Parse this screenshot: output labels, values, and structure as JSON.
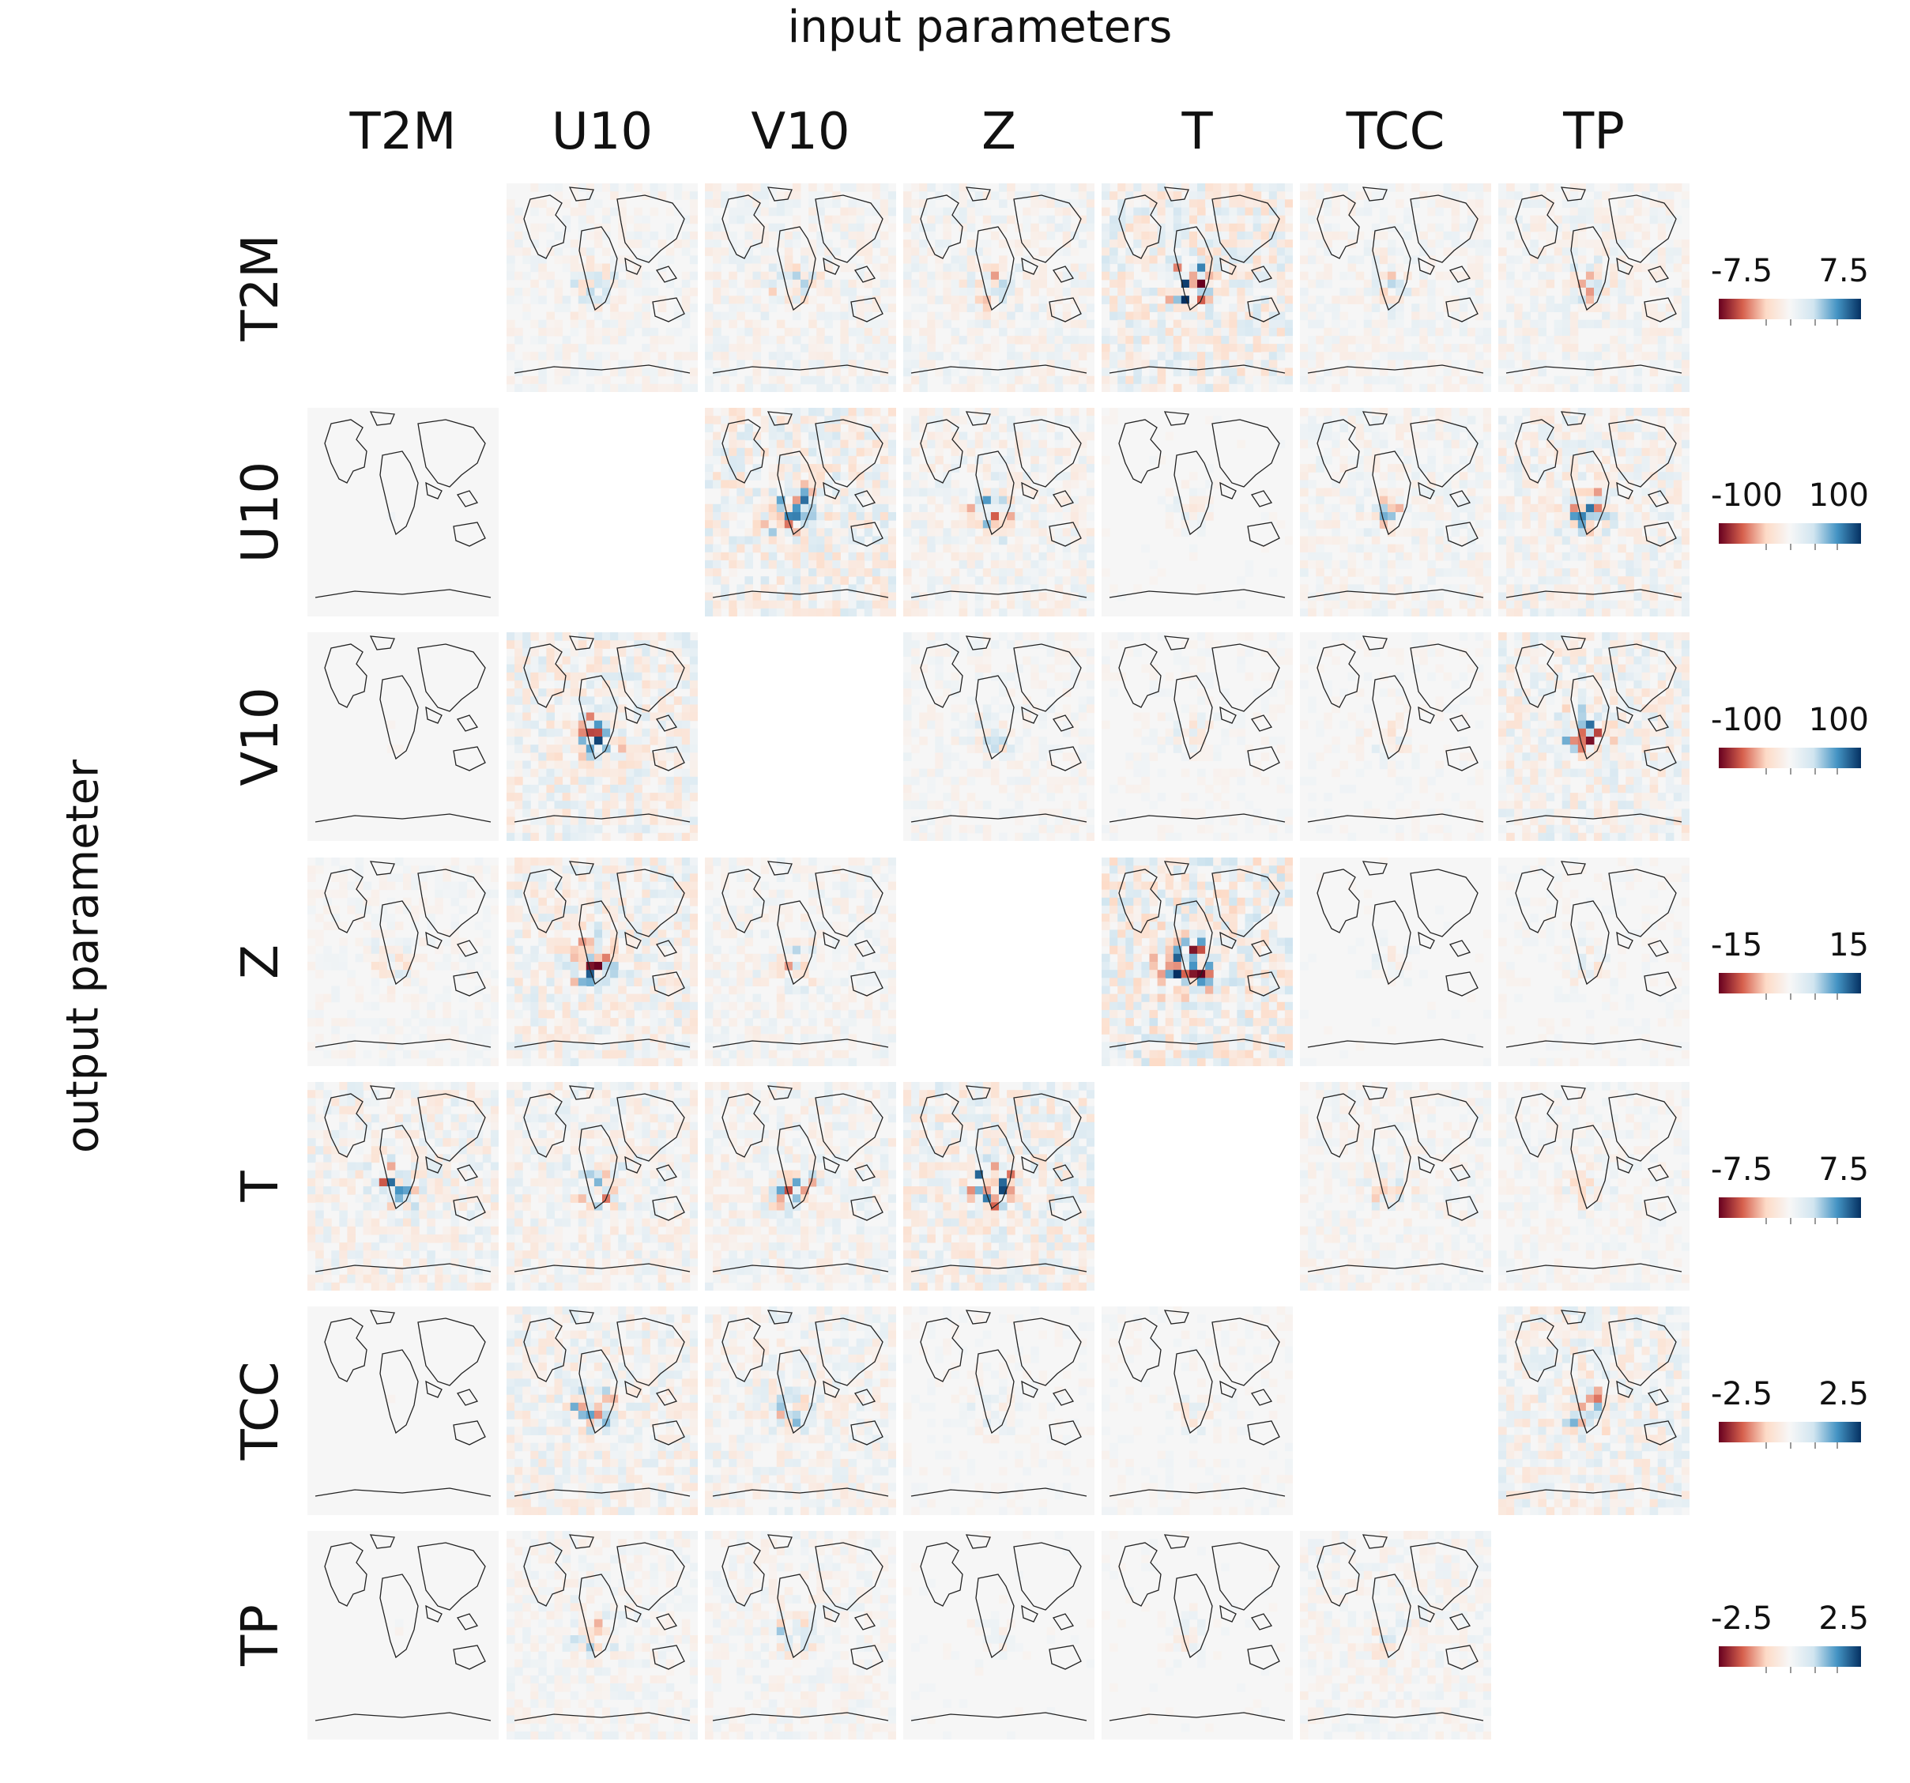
{
  "titles": {
    "top": "input parameters",
    "left": "output parameter"
  },
  "chart_data": {
    "type": "heatmap",
    "title": "input parameters",
    "xlabel": "input parameters",
    "ylabel": "output parameter",
    "columns": [
      "T2M",
      "U10",
      "V10",
      "Z",
      "T",
      "TCC",
      "TP"
    ],
    "rows": [
      "T2M",
      "U10",
      "V10",
      "Z",
      "T",
      "TCC",
      "TP"
    ],
    "colorbars": [
      {
        "row": "T2M",
        "min_label": "-7.5",
        "max_label": "7.5",
        "vmin": -7.5,
        "vmax": 7.5
      },
      {
        "row": "U10",
        "min_label": "-100",
        "max_label": "100",
        "vmin": -100,
        "vmax": 100
      },
      {
        "row": "V10",
        "min_label": "-100",
        "max_label": "100",
        "vmin": -100,
        "vmax": 100
      },
      {
        "row": "Z",
        "min_label": "-15",
        "max_label": "15",
        "vmin": -15,
        "vmax": 15
      },
      {
        "row": "T",
        "min_label": "-7.5",
        "max_label": "7.5",
        "vmin": -7.5,
        "vmax": 7.5
      },
      {
        "row": "TCC",
        "min_label": "-2.5",
        "max_label": "2.5",
        "vmin": -2.5,
        "vmax": 2.5
      },
      {
        "row": "TP",
        "min_label": "-2.5",
        "max_label": "2.5",
        "vmin": -2.5,
        "vmax": 2.5
      }
    ],
    "colormap": [
      "#67001f",
      "#d6604d",
      "#fddbc7",
      "#f7f7f7",
      "#d1e5f0",
      "#4393c3",
      "#053061"
    ],
    "diagonal_empty": true,
    "missing_cells": [
      [
        "T2M",
        "T2M"
      ],
      [
        "TP",
        "TP"
      ]
    ],
    "intensity": [
      [
        null,
        0.35,
        0.45,
        0.45,
        0.85,
        0.35,
        0.45
      ],
      [
        0.05,
        null,
        0.8,
        0.5,
        0.15,
        0.4,
        0.6
      ],
      [
        0.05,
        0.75,
        null,
        0.3,
        0.2,
        0.2,
        0.7
      ],
      [
        0.25,
        0.7,
        0.4,
        null,
        1.0,
        0.15,
        0.2
      ],
      [
        0.6,
        0.55,
        0.5,
        0.75,
        null,
        0.35,
        0.3
      ],
      [
        0.05,
        0.6,
        0.5,
        0.2,
        0.2,
        null,
        0.65
      ],
      [
        0.05,
        0.35,
        0.35,
        0.15,
        0.15,
        0.35,
        null
      ]
    ]
  }
}
